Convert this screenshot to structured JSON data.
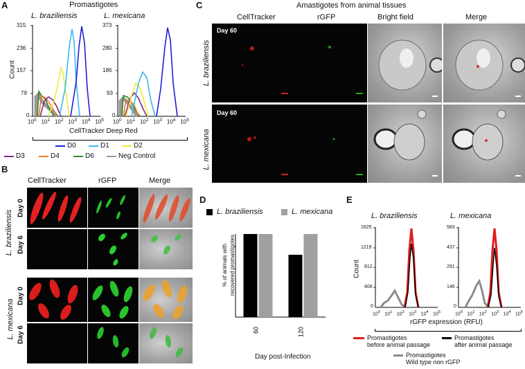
{
  "panelA": {
    "letter": "A",
    "title": "Promastigotes",
    "species_left": "L. braziliensis",
    "species_right": "L. mexicana",
    "ylabel": "Count",
    "xlabel": "CellTracker Deep Red",
    "left_yticks": [
      "315",
      "236",
      "157",
      "79",
      "0"
    ],
    "right_yticks": [
      "373",
      "280",
      "186",
      "93",
      "0"
    ],
    "legend": [
      {
        "label": "D0",
        "color": "#1f1fd6"
      },
      {
        "label": "D1",
        "color": "#3ab8ea"
      },
      {
        "label": "D2",
        "color": "#f2ea3b"
      },
      {
        "label": "D3",
        "color": "#7b2a8c"
      },
      {
        "label": "D4",
        "color": "#f07a1c"
      },
      {
        "label": "D6",
        "color": "#2c8a2c"
      },
      {
        "label": "Neg Control",
        "color": "#9a9a9a"
      }
    ]
  },
  "panelB": {
    "letter": "B",
    "cols": [
      "CellTracker",
      "rGFP",
      "Merge"
    ],
    "species": [
      "L. braziliensis",
      "L. mexicana"
    ],
    "days": [
      "Day 0",
      "Day 6",
      "Day 0",
      "Day 6"
    ]
  },
  "panelC": {
    "letter": "C",
    "title": "Amastigotes from animal  tissues",
    "cols": [
      "CellTracker",
      "rGFP",
      "Bright field",
      "Merge"
    ],
    "species": [
      "L. braziliensis",
      "L. mexicana"
    ],
    "day": "Day 60"
  },
  "panelD": {
    "letter": "D",
    "legend": [
      {
        "label": "L. braziliensis",
        "color": "#000000"
      },
      {
        "label": "L. mexicana",
        "color": "#a0a0a0"
      }
    ],
    "ylabel_line1": "% of animals with",
    "ylabel_line2": "recovered  promastigotes",
    "xlabel": "Day post-Infection",
    "chart_data": {
      "type": "bar",
      "categories": [
        "60",
        "120"
      ],
      "series": [
        {
          "name": "L. braziliensis",
          "values": [
            100,
            75
          ]
        },
        {
          "name": "L. mexicana",
          "values": [
            100,
            100
          ]
        }
      ],
      "ylim": [
        0,
        100
      ],
      "xlabel": "Day post-Infection"
    }
  },
  "panelE": {
    "letter": "E",
    "species_left": "L. braziliensis",
    "species_right": "L. mexicana",
    "ylabel": "Count",
    "xlabel": "rGFP expression (RFU)",
    "left_yticks": [
      "1625",
      "1219",
      "812",
      "406",
      "0"
    ],
    "right_yticks": [
      "583",
      "437",
      "291",
      "146",
      "0"
    ],
    "legend": [
      {
        "l1": "Promastigotes",
        "l2": "before animal passage",
        "color": "#e01d1d"
      },
      {
        "l1": "Promastigotes",
        "l2": "after  animal passage",
        "color": "#000000"
      },
      {
        "l1": "Promastigotes",
        "l2": "Wild type non rGFP",
        "color": "#8c8c8c"
      }
    ]
  },
  "xticks": {
    "base": "10",
    "exps": [
      "0",
      "1",
      "2",
      "3",
      "4",
      "5"
    ]
  }
}
